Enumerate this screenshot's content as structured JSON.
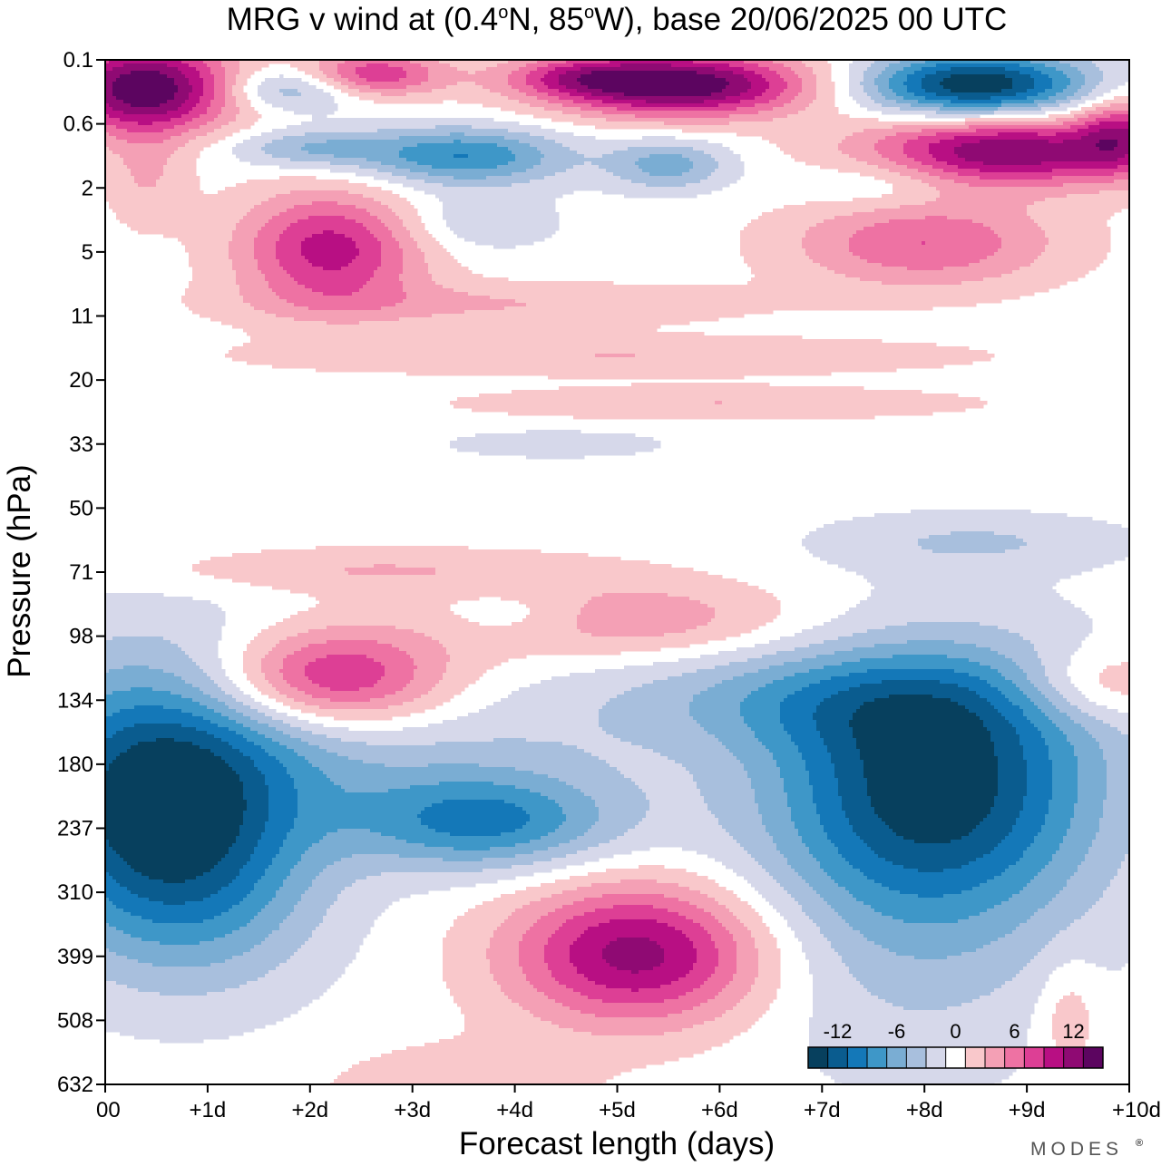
{
  "chart_data": {
    "type": "heatmap",
    "title": "MRG v wind at (0.4°N, 85°W),  base 20/06/2025  00 UTC",
    "title_parts": {
      "pre": "MRG v wind at (0.4",
      "mid1": "N, 85",
      "mid2": "W),  base 20/06/2025  00 UTC",
      "deg": "o"
    },
    "xlabel": "Forecast length (days)",
    "ylabel": "Pressure (hPa)",
    "x_ticks": [
      "00",
      "+1d",
      "+2d",
      "+3d",
      "+4d",
      "+5d",
      "+6d",
      "+7d",
      "+8d",
      "+9d",
      "+10d"
    ],
    "xlim": [
      0,
      10
    ],
    "y_ticks": [
      "0.1",
      "0.6",
      "2",
      "5",
      "11",
      "20",
      "33",
      "50",
      "71",
      "98",
      "134",
      "180",
      "237",
      "310",
      "399",
      "508",
      "632"
    ],
    "ylim": [
      0.1,
      632
    ],
    "colorbar": {
      "tick_labels": [
        "-12",
        "-6",
        "0",
        "6",
        "12"
      ],
      "tick_values": [
        -12,
        -6,
        0,
        6,
        12
      ],
      "levels": [
        -15,
        -13,
        -11,
        -9,
        -7,
        -5,
        -3,
        -1,
        1,
        3,
        5,
        7,
        9,
        11,
        13,
        15
      ],
      "colors": [
        "#07405e",
        "#0a5c8f",
        "#1478b8",
        "#3e97c8",
        "#7aadd3",
        "#a8bfdd",
        "#d6d8ea",
        "#ffffff",
        "#f9c8cb",
        "#f4a0b5",
        "#ee72a3",
        "#dd3f95",
        "#b80f83",
        "#8f0a73",
        "#5c0560"
      ]
    },
    "features": [
      {
        "x": 0.55,
        "p": 210,
        "v": -15,
        "rx": 1.35,
        "ry": 2.1
      },
      {
        "x": 1.0,
        "p": 320,
        "v": -3,
        "rx": 1.2,
        "ry": 1.6
      },
      {
        "x": 3.7,
        "p": 232,
        "v": -9,
        "rx": 1.3,
        "ry": 0.75
      },
      {
        "x": 3.0,
        "p": 180,
        "v": -3,
        "rx": 2.2,
        "ry": 1.0
      },
      {
        "x": 8.1,
        "p": 195,
        "v": -14,
        "rx": 1.6,
        "ry": 2.0
      },
      {
        "x": 7.0,
        "p": 134,
        "v": -5,
        "rx": 2.4,
        "ry": 0.8
      },
      {
        "x": 7.9,
        "p": 380,
        "v": -3,
        "rx": 1.6,
        "ry": 2.3
      },
      {
        "x": 5.2,
        "p": 395,
        "v": 12,
        "rx": 1.25,
        "ry": 1.1
      },
      {
        "x": 3.4,
        "p": 650,
        "v": 3,
        "rx": 1.2,
        "ry": 0.7
      },
      {
        "x": 2.2,
        "p": 120,
        "v": 10,
        "rx": 1.1,
        "ry": 0.75
      },
      {
        "x": 9.7,
        "p": 125,
        "v": 5,
        "rx": 0.8,
        "ry": 0.6
      },
      {
        "x": 9.4,
        "p": 500,
        "v": 3,
        "rx": 0.3,
        "ry": 0.9
      },
      {
        "x": 5.0,
        "p": 90,
        "v": 5,
        "rx": 1.8,
        "ry": 0.6
      },
      {
        "x": 2.5,
        "p": 70,
        "v": 3,
        "rx": 2.2,
        "ry": 0.35
      },
      {
        "x": 8.5,
        "p": 60,
        "v": -3,
        "rx": 1.5,
        "ry": 0.45
      },
      {
        "x": 4.0,
        "p": 88,
        "v": -3,
        "rx": 0.8,
        "ry": 0.4
      },
      {
        "x": 2.2,
        "p": 4.8,
        "v": 10,
        "rx": 0.9,
        "ry": 0.9
      },
      {
        "x": 8.0,
        "p": 4.4,
        "v": 7,
        "rx": 1.3,
        "ry": 0.7
      },
      {
        "x": 3.5,
        "p": 1.1,
        "v": -9,
        "rx": 1.0,
        "ry": 0.45
      },
      {
        "x": 5.5,
        "p": 1.3,
        "v": -6,
        "rx": 0.6,
        "ry": 0.4
      },
      {
        "x": 2.0,
        "p": 0.95,
        "v": -5,
        "rx": 0.8,
        "ry": 0.3
      },
      {
        "x": 7.6,
        "p": 1.8,
        "v": -3,
        "rx": 0.8,
        "ry": 0.4
      },
      {
        "x": 3.6,
        "p": 3.3,
        "v": -3,
        "rx": 0.8,
        "ry": 0.45
      },
      {
        "x": 8.8,
        "p": 1.0,
        "v": 13,
        "rx": 1.4,
        "ry": 0.55
      },
      {
        "x": 0.4,
        "p": 0.22,
        "v": 15,
        "rx": 0.9,
        "ry": 0.7
      },
      {
        "x": 5.6,
        "p": 0.2,
        "v": 15,
        "rx": 1.3,
        "ry": 0.5
      },
      {
        "x": 8.5,
        "p": 0.2,
        "v": -15,
        "rx": 1.1,
        "ry": 0.5
      },
      {
        "x": 1.8,
        "p": 0.22,
        "v": -6,
        "rx": 0.7,
        "ry": 0.35
      },
      {
        "x": 2.6,
        "p": 0.15,
        "v": 9,
        "rx": 0.7,
        "ry": 0.35
      },
      {
        "x": 4.6,
        "p": 0.16,
        "v": 5,
        "rx": 0.7,
        "ry": 0.3
      },
      {
        "x": 3.8,
        "p": 9.5,
        "v": 3,
        "rx": 2.5,
        "ry": 0.35
      },
      {
        "x": 5.0,
        "p": 16,
        "v": 3,
        "rx": 3.5,
        "ry": 0.3
      },
      {
        "x": 6.0,
        "p": 24,
        "v": 3,
        "rx": 2.5,
        "ry": 0.25
      },
      {
        "x": 4.4,
        "p": 33,
        "v": -3,
        "rx": 1.0,
        "ry": 0.2
      },
      {
        "x": 0.4,
        "p": 1.6,
        "v": 3,
        "rx": 0.4,
        "ry": 0.8
      },
      {
        "x": 9.9,
        "p": 0.7,
        "v": 7,
        "rx": 0.4,
        "ry": 0.6
      }
    ]
  },
  "brand": {
    "text": "MODES",
    "mark": "®"
  }
}
